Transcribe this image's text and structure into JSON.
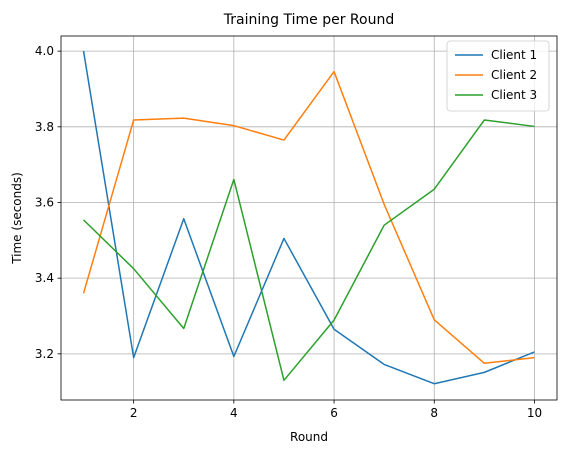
{
  "chart_data": {
    "type": "line",
    "title": "Training Time per Round",
    "xlabel": "Round",
    "ylabel": "Time (seconds)",
    "x": [
      1,
      2,
      3,
      4,
      5,
      6,
      7,
      8,
      9,
      10
    ],
    "xticks": [
      2,
      4,
      6,
      8,
      10
    ],
    "yticks": [
      3.2,
      3.4,
      3.6,
      3.8,
      4.0
    ],
    "xtick_labels": [
      "2",
      "4",
      "6",
      "8",
      "10"
    ],
    "ytick_labels": [
      "3.2",
      "3.4",
      "3.6",
      "3.8",
      "4.0"
    ],
    "xlim": [
      0.55,
      10.45
    ],
    "ylim": [
      3.078,
      4.04
    ],
    "grid": true,
    "legend_position": "upper right",
    "series": [
      {
        "name": "Client 1",
        "color": "#1f77b4",
        "values": [
          4.0,
          3.19,
          3.557,
          3.193,
          3.505,
          3.265,
          3.172,
          3.121,
          3.151,
          3.205
        ]
      },
      {
        "name": "Client 2",
        "color": "#ff7f0e",
        "values": [
          3.36,
          3.818,
          3.823,
          3.803,
          3.765,
          3.946,
          3.595,
          3.29,
          3.175,
          3.19
        ]
      },
      {
        "name": "Client 3",
        "color": "#2ca02c",
        "values": [
          3.554,
          3.425,
          3.267,
          3.661,
          3.13,
          3.289,
          3.54,
          3.635,
          3.818,
          3.801
        ]
      }
    ]
  }
}
